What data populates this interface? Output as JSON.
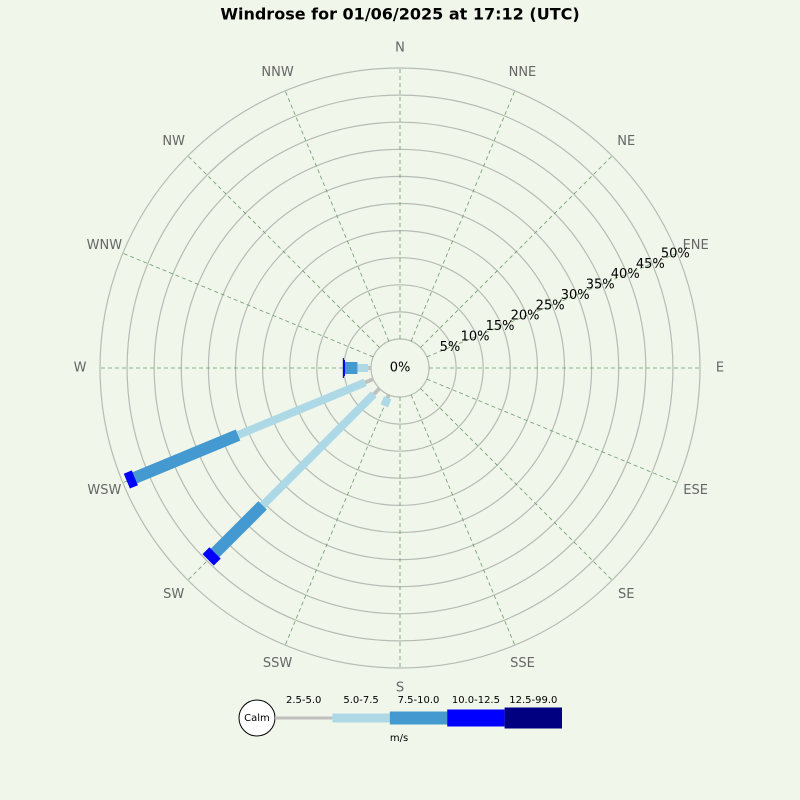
{
  "chart_data": {
    "type": "windrose",
    "title": "Windrose for 01/06/2025 at 17:12 (UTC)",
    "directions": [
      "N",
      "NNE",
      "NE",
      "ENE",
      "E",
      "ESE",
      "SE",
      "SSE",
      "S",
      "SSW",
      "SW",
      "WSW",
      "W",
      "WNW",
      "NW",
      "NNW"
    ],
    "rlim": [
      0,
      50
    ],
    "rticks": [
      {
        "value": 0,
        "label": "0%"
      },
      {
        "value": 5,
        "label": "5%"
      },
      {
        "value": 10,
        "label": "10%"
      },
      {
        "value": 15,
        "label": "15%"
      },
      {
        "value": 20,
        "label": "20%"
      },
      {
        "value": 25,
        "label": "25%"
      },
      {
        "value": 30,
        "label": "30%"
      },
      {
        "value": 35,
        "label": "35%"
      },
      {
        "value": 40,
        "label": "40%"
      },
      {
        "value": 45,
        "label": "45%"
      },
      {
        "value": 50,
        "label": "50%"
      }
    ],
    "series": [
      {
        "name": "2.5-5.0",
        "color": "#c0c0c0",
        "values": [
          0,
          0,
          0,
          0,
          0,
          0,
          0,
          0,
          0,
          0.6,
          1.5,
          1.6,
          0.5,
          0,
          0,
          0
        ]
      },
      {
        "name": "5.0-7.5",
        "color": "#add8e6",
        "values": [
          0,
          0,
          0,
          0,
          0,
          0,
          0,
          0,
          0,
          1.6,
          29.0,
          25.4,
          2.0,
          0,
          0,
          0
        ]
      },
      {
        "name": "7.5-10.0",
        "color": "#4499d0",
        "values": [
          0,
          0,
          0,
          0,
          0,
          0,
          0,
          0,
          0,
          0,
          12.4,
          20.6,
          2.3,
          0,
          0,
          0
        ]
      },
      {
        "name": "10.0-12.5",
        "color": "#0000ff",
        "values": [
          0,
          0,
          0,
          0,
          0,
          0,
          0,
          0,
          0,
          0,
          1.8,
          1.6,
          0.2,
          0,
          0,
          0
        ]
      },
      {
        "name": "12.5-99.0",
        "color": "#000080",
        "values": [
          0,
          0,
          0,
          0,
          0,
          0,
          0,
          0,
          0,
          0,
          0,
          0,
          0.2,
          0,
          0,
          0
        ]
      }
    ],
    "legend_calm": "Calm",
    "legend_units": "m/s"
  }
}
